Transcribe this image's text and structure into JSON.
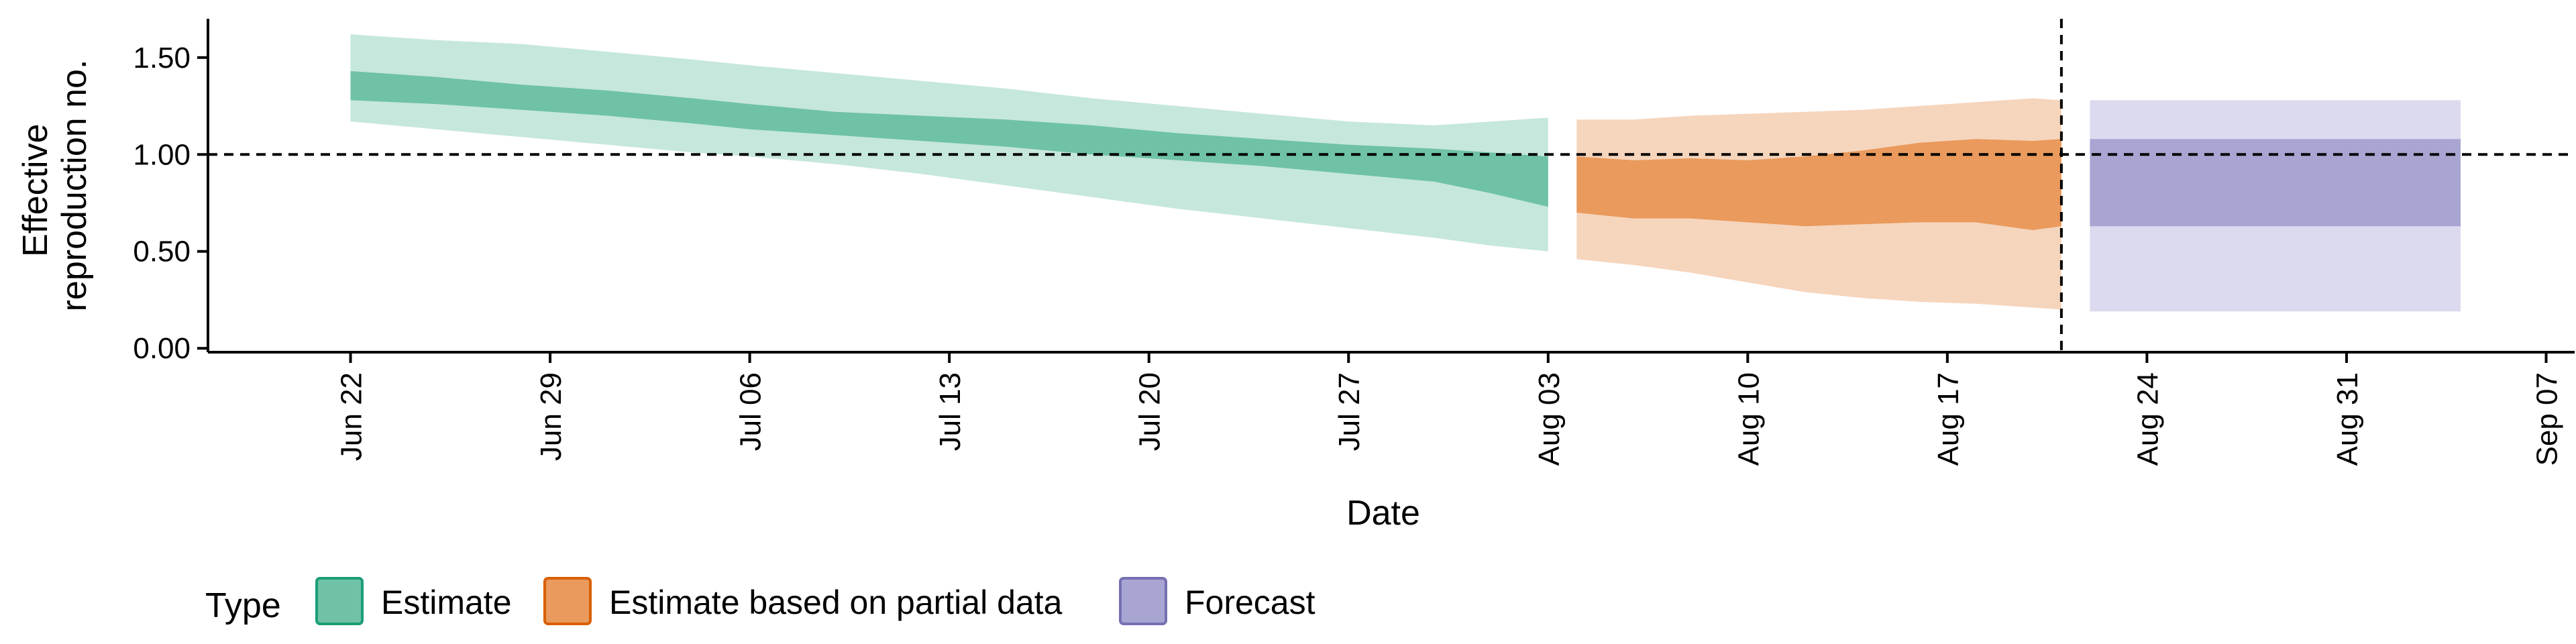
{
  "chart_data": {
    "type": "area",
    "xlabel": "Date",
    "ylabel_lines": [
      "Effective",
      "reproduction no."
    ],
    "ylim": [
      -0.02,
      1.7
    ],
    "xlim": [
      "2020-06-17",
      "2020-09-08"
    ],
    "y_ticks": [
      0.0,
      0.5,
      1.0,
      1.5
    ],
    "y_tick_labels": [
      "0.00",
      "0.50",
      "1.00",
      "1.50"
    ],
    "x_ticks": [
      "2020-06-22",
      "2020-06-29",
      "2020-07-06",
      "2020-07-13",
      "2020-07-20",
      "2020-07-27",
      "2020-08-03",
      "2020-08-10",
      "2020-08-17",
      "2020-08-24",
      "2020-08-31",
      "2020-09-07"
    ],
    "x_tick_labels": [
      "Jun 22",
      "Jun 29",
      "Jul 06",
      "Jul 13",
      "Jul 20",
      "Jul 27",
      "Aug 03",
      "Aug 10",
      "Aug 17",
      "Aug 24",
      "Aug 31",
      "Sep 07"
    ],
    "reference_line_y": 1.0,
    "reference_line_x": "2020-08-21",
    "legend": {
      "title": "Type",
      "position": "bottom",
      "items": [
        {
          "label": "Estimate",
          "fill": "#6fc2a6",
          "border": "#1b9e77"
        },
        {
          "label": "Estimate based on partial data",
          "fill": "#e99a5c",
          "border": "#d95f02"
        },
        {
          "label": "Forecast",
          "fill": "#a9a5d2",
          "border": "#7570b3"
        }
      ]
    },
    "series": [
      {
        "name": "Estimate",
        "inner_color": "#6fc2a6",
        "outer_color": "#c6e7dc",
        "x": [
          "2020-06-22",
          "2020-06-25",
          "2020-06-28",
          "2020-07-01",
          "2020-07-04",
          "2020-07-06",
          "2020-07-09",
          "2020-07-12",
          "2020-07-15",
          "2020-07-18",
          "2020-07-21",
          "2020-07-24",
          "2020-07-27",
          "2020-07-30",
          "2020-08-01",
          "2020-08-03"
        ],
        "inner_upper": [
          1.43,
          1.4,
          1.36,
          1.33,
          1.29,
          1.26,
          1.22,
          1.2,
          1.18,
          1.15,
          1.11,
          1.08,
          1.05,
          1.03,
          1.01,
          0.99
        ],
        "inner_lower": [
          1.28,
          1.26,
          1.23,
          1.2,
          1.16,
          1.13,
          1.1,
          1.07,
          1.04,
          1.0,
          0.97,
          0.94,
          0.9,
          0.86,
          0.8,
          0.73
        ],
        "outer_upper": [
          1.62,
          1.59,
          1.57,
          1.53,
          1.49,
          1.46,
          1.42,
          1.38,
          1.34,
          1.29,
          1.25,
          1.21,
          1.17,
          1.15,
          1.17,
          1.19
        ],
        "outer_lower": [
          1.17,
          1.13,
          1.09,
          1.05,
          1.01,
          0.99,
          0.95,
          0.9,
          0.84,
          0.78,
          0.72,
          0.67,
          0.62,
          0.57,
          0.53,
          0.5
        ]
      },
      {
        "name": "Estimate based on partial data",
        "inner_color": "#e99a5c",
        "outer_color": "#f6d5bd",
        "x": [
          "2020-08-04",
          "2020-08-06",
          "2020-08-08",
          "2020-08-10",
          "2020-08-12",
          "2020-08-14",
          "2020-08-16",
          "2020-08-18",
          "2020-08-20",
          "2020-08-21"
        ],
        "inner_upper": [
          0.99,
          0.97,
          0.98,
          0.97,
          0.99,
          1.02,
          1.06,
          1.08,
          1.07,
          1.08
        ],
        "inner_lower": [
          0.7,
          0.67,
          0.67,
          0.65,
          0.63,
          0.64,
          0.65,
          0.65,
          0.61,
          0.63
        ],
        "outer_upper": [
          1.18,
          1.18,
          1.2,
          1.21,
          1.22,
          1.23,
          1.25,
          1.27,
          1.29,
          1.28
        ],
        "outer_lower": [
          0.46,
          0.43,
          0.39,
          0.34,
          0.29,
          0.26,
          0.24,
          0.23,
          0.21,
          0.2
        ]
      },
      {
        "name": "Forecast",
        "inner_color": "#a9a5d2",
        "outer_color": "#dcdaee",
        "x": [
          "2020-08-22",
          "2020-09-04"
        ],
        "inner_upper": [
          1.08,
          1.08
        ],
        "inner_lower": [
          0.63,
          0.63
        ],
        "outer_upper": [
          1.28,
          1.28
        ],
        "outer_lower": [
          0.19,
          0.19
        ]
      }
    ]
  }
}
